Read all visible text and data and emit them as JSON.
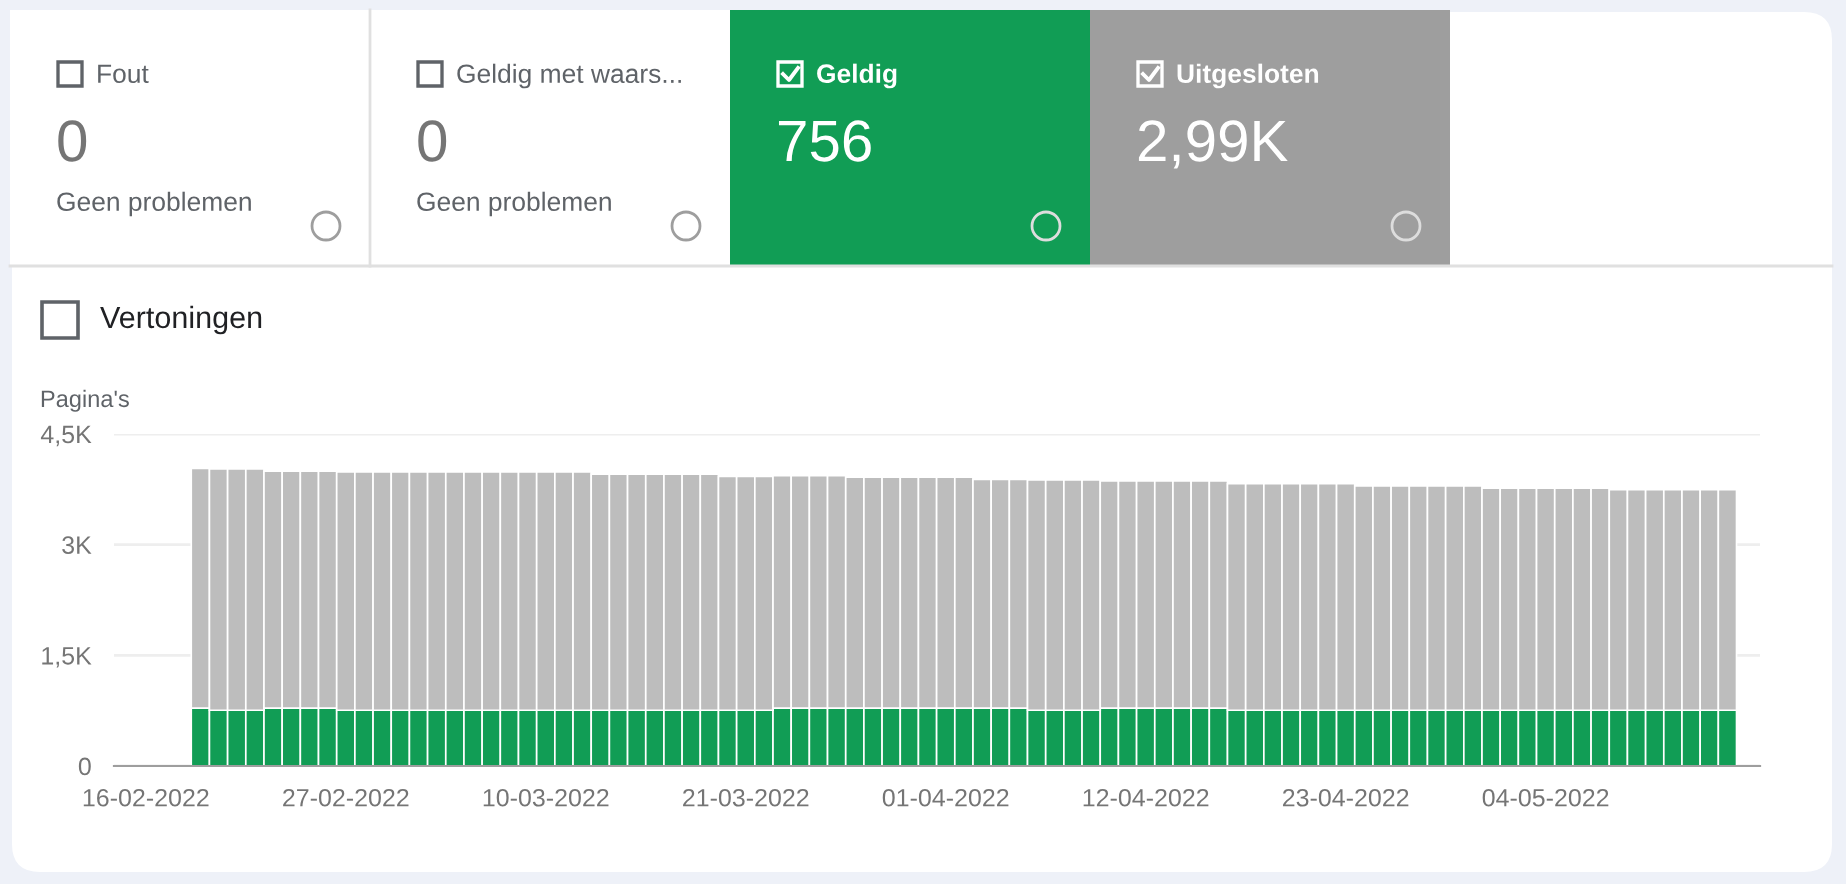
{
  "chart_data": [
    {
      "type": "other",
      "categories": [
        "Fout",
        "Geldig met waars...",
        "Geldig",
        "Uitgesloten"
      ],
      "value_labels": [
        "0",
        "0",
        "756",
        "2,99K"
      ],
      "annotations": [
        "Geen problemen",
        "Geen problemen"
      ],
      "colors": [
        "#ffffff",
        "#ffffff",
        "#119d55",
        "#9e9e9e"
      ]
    },
    {
      "type": "bar",
      "stacked": true,
      "ylabel": "Pagina's",
      "annotations": [
        "Vertoningen"
      ],
      "x": [
        "2022-02-19",
        "2022-02-20",
        "2022-02-21",
        "2022-02-22",
        "2022-02-23",
        "2022-02-24",
        "2022-02-25",
        "2022-02-26",
        "2022-02-27",
        "2022-02-28",
        "2022-03-01",
        "2022-03-02",
        "2022-03-03",
        "2022-03-04",
        "2022-03-05",
        "2022-03-06",
        "2022-03-07",
        "2022-03-08",
        "2022-03-09",
        "2022-03-10",
        "2022-03-11",
        "2022-03-12",
        "2022-03-13",
        "2022-03-14",
        "2022-03-15",
        "2022-03-16",
        "2022-03-17",
        "2022-03-18",
        "2022-03-19",
        "2022-03-20",
        "2022-03-21",
        "2022-03-22",
        "2022-03-23",
        "2022-03-24",
        "2022-03-25",
        "2022-03-26",
        "2022-03-27",
        "2022-03-28",
        "2022-03-29",
        "2022-03-30",
        "2022-03-31",
        "2022-04-01",
        "2022-04-02",
        "2022-04-03",
        "2022-04-04",
        "2022-04-05",
        "2022-04-06",
        "2022-04-07",
        "2022-04-08",
        "2022-04-09",
        "2022-04-10",
        "2022-04-11",
        "2022-04-12",
        "2022-04-13",
        "2022-04-14",
        "2022-04-15",
        "2022-04-16",
        "2022-04-17",
        "2022-04-18",
        "2022-04-19",
        "2022-04-20",
        "2022-04-21",
        "2022-04-22",
        "2022-04-23",
        "2022-04-24",
        "2022-04-25",
        "2022-04-26",
        "2022-04-27",
        "2022-04-28",
        "2022-04-29",
        "2022-04-30",
        "2022-05-01",
        "2022-05-02",
        "2022-05-03",
        "2022-05-04",
        "2022-05-05",
        "2022-05-06",
        "2022-05-07",
        "2022-05-08",
        "2022-05-09",
        "2022-05-10",
        "2022-05-11",
        "2022-05-12",
        "2022-05-13",
        "2022-05-14"
      ],
      "series": [
        {
          "color": "#119d55",
          "values": [
            785,
            756,
            756,
            756,
            785,
            785,
            785,
            785,
            756,
            756,
            756,
            756,
            756,
            756,
            756,
            756,
            756,
            756,
            756,
            756,
            756,
            756,
            756,
            756,
            756,
            756,
            756,
            756,
            756,
            756,
            756,
            756,
            785,
            785,
            785,
            785,
            785,
            785,
            785,
            785,
            785,
            785,
            785,
            785,
            785,
            785,
            756,
            756,
            756,
            756,
            785,
            785,
            785,
            785,
            785,
            785,
            785,
            756,
            756,
            756,
            756,
            756,
            756,
            756,
            756,
            756,
            756,
            756,
            756,
            756,
            756,
            756,
            756,
            756,
            756,
            756,
            756,
            756,
            756,
            756,
            756,
            756,
            756,
            756,
            756
          ]
        },
        {
          "color": "#bdbdbd",
          "values": [
            3250,
            3270,
            3270,
            3270,
            3210,
            3210,
            3210,
            3210,
            3230,
            3230,
            3230,
            3230,
            3230,
            3230,
            3230,
            3230,
            3230,
            3230,
            3230,
            3230,
            3230,
            3230,
            3200,
            3200,
            3200,
            3200,
            3200,
            3200,
            3200,
            3170,
            3170,
            3170,
            3150,
            3150,
            3150,
            3150,
            3130,
            3130,
            3130,
            3130,
            3130,
            3130,
            3130,
            3100,
            3100,
            3100,
            3120,
            3120,
            3120,
            3120,
            3080,
            3080,
            3080,
            3080,
            3080,
            3080,
            3080,
            3070,
            3070,
            3070,
            3070,
            3070,
            3070,
            3070,
            3040,
            3040,
            3040,
            3040,
            3040,
            3040,
            3040,
            3010,
            3010,
            3010,
            3010,
            3010,
            3010,
            3010,
            2990,
            2990,
            2990,
            2990,
            2990,
            2990,
            2990
          ]
        }
      ],
      "xlim": [
        "2022-02-14T06:00",
        "2022-05-15T19:00"
      ],
      "xticks": [
        {
          "value": "2022-02-16",
          "label": "16-02-2022"
        },
        {
          "value": "2022-02-27",
          "label": "27-02-2022"
        },
        {
          "value": "2022-03-10",
          "label": "10-03-2022"
        },
        {
          "value": "2022-03-21",
          "label": "21-03-2022"
        },
        {
          "value": "2022-04-01",
          "label": "01-04-2022"
        },
        {
          "value": "2022-04-12",
          "label": "12-04-2022"
        },
        {
          "value": "2022-04-23",
          "label": "23-04-2022"
        },
        {
          "value": "2022-05-04",
          "label": "04-05-2022"
        }
      ],
      "ylim": [
        0,
        4500
      ],
      "yticks": [
        0,
        {
          "value": 1500,
          "label": "1,5K"
        },
        {
          "value": 3000,
          "label": "3K"
        },
        {
          "value": 4500,
          "label": "4,5K"
        }
      ],
      "grid": "y",
      "legend": false
    }
  ]
}
